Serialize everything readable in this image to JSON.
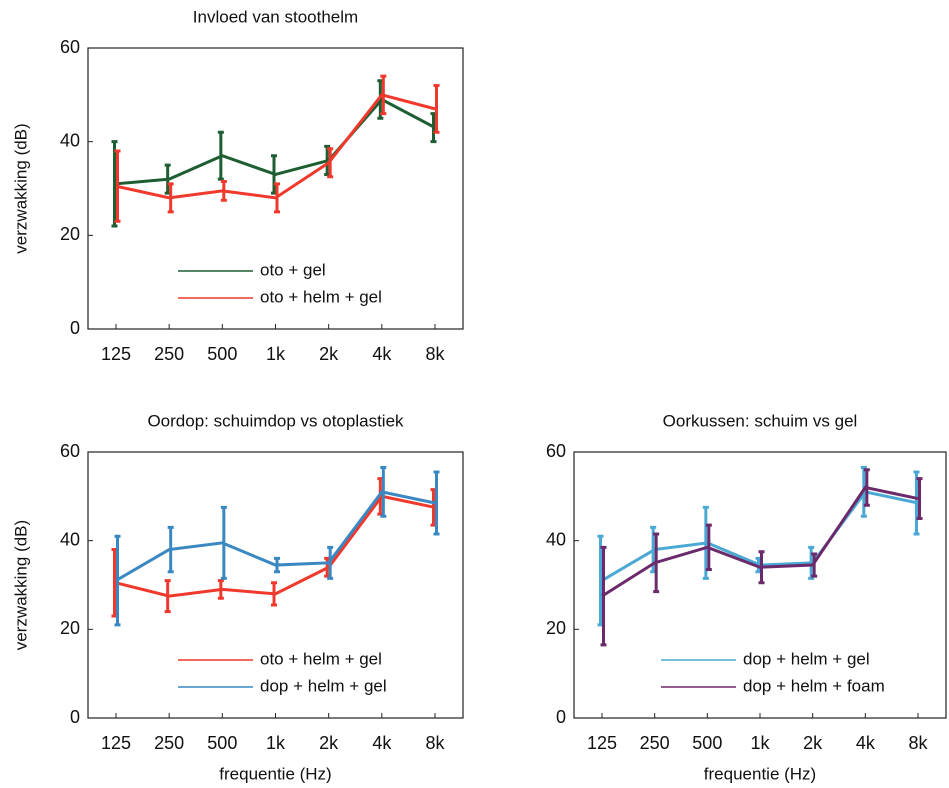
{
  "chart_data": [
    {
      "type": "line",
      "title": "Invloed van stoothelm",
      "ylabel": "verzwakking (dB)",
      "categories": [
        "125",
        "250",
        "500",
        "1k",
        "2k",
        "4k",
        "8k"
      ],
      "ylim": [
        0,
        60
      ],
      "yticks": [
        0,
        20,
        40,
        60
      ],
      "legend": "lower right",
      "series": [
        {
          "name": "oto + gel",
          "color": "#1e5e32",
          "values": [
            31,
            32,
            37,
            33,
            36,
            49,
            43
          ],
          "errors": [
            9,
            3,
            5,
            4,
            3,
            4,
            3
          ]
        },
        {
          "name": "oto + helm + gel",
          "color": "#f0392c",
          "values": [
            30.5,
            28,
            29.5,
            28,
            35.5,
            50,
            47
          ],
          "errors": [
            7.5,
            3,
            2,
            3,
            3,
            4,
            5
          ]
        }
      ]
    },
    {
      "type": "line",
      "title": "Oordop: schuimdop vs otoplastiek",
      "ylabel": "verzwakking (dB)",
      "xlabel": "frequentie (Hz)",
      "categories": [
        "125",
        "250",
        "500",
        "1k",
        "2k",
        "4k",
        "8k"
      ],
      "ylim": [
        0,
        60
      ],
      "yticks": [
        0,
        20,
        40,
        60
      ],
      "legend": "lower right",
      "series": [
        {
          "name": "oto + helm + gel",
          "color": "#f0392c",
          "values": [
            30.5,
            27.5,
            29,
            28,
            34,
            50,
            47.5
          ],
          "errors": [
            7.5,
            3.5,
            2,
            2.5,
            2,
            4,
            4
          ]
        },
        {
          "name": "dop + helm + gel",
          "color": "#3a88c2",
          "values": [
            31,
            38,
            39.5,
            34.5,
            35,
            51,
            48.5
          ],
          "errors": [
            10,
            5,
            8,
            1.5,
            3.5,
            5.5,
            7
          ]
        }
      ]
    },
    {
      "type": "line",
      "title": "Oorkussen: schuim vs gel",
      "xlabel": "frequentie (Hz)",
      "categories": [
        "125",
        "250",
        "500",
        "1k",
        "2k",
        "4k",
        "8k"
      ],
      "ylim": [
        0,
        60
      ],
      "yticks": [
        0,
        20,
        40,
        60
      ],
      "legend": "lower right",
      "series": [
        {
          "name": "dop + helm + gel",
          "color": "#4aa8d4",
          "values": [
            31,
            38,
            39.5,
            34.5,
            35,
            51,
            48.5
          ],
          "errors": [
            10,
            5,
            8,
            1.5,
            3.5,
            5.5,
            7
          ]
        },
        {
          "name": "dop + helm + foam",
          "color": "#6b2a6b",
          "values": [
            27.5,
            35,
            38.5,
            34,
            34.5,
            52,
            49.5
          ],
          "errors": [
            11,
            6.5,
            5,
            3.5,
            2.5,
            4,
            4.5
          ]
        }
      ]
    }
  ]
}
